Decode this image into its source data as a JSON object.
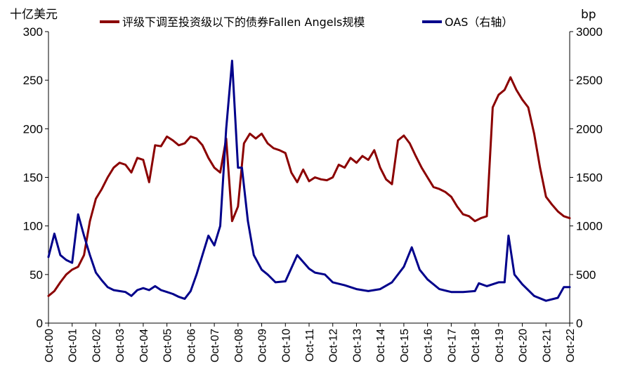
{
  "chart_data": {
    "type": "line",
    "left_unit": "十亿美元",
    "right_unit": "bp",
    "y_left": {
      "min": 0,
      "max": 300,
      "ticks": [
        0,
        50,
        100,
        150,
        200,
        250,
        300
      ]
    },
    "y_right": {
      "min": 0,
      "max": 3000,
      "ticks": [
        0,
        500,
        1000,
        1500,
        2000,
        2500,
        3000
      ]
    },
    "x_ticks": [
      "Oct-00",
      "Oct-01",
      "Oct-02",
      "Oct-03",
      "Oct-04",
      "Oct-05",
      "Oct-06",
      "Oct-07",
      "Oct-08",
      "Oct-09",
      "Oct-10",
      "Oct-11",
      "Oct-12",
      "Oct-13",
      "Oct-14",
      "Oct-15",
      "Oct-16",
      "Oct-17",
      "Oct-18",
      "Oct-19",
      "Oct-20",
      "Oct-21",
      "Oct-22"
    ],
    "legend_position": "top",
    "grid": false,
    "series": [
      {
        "name": "评级下调至投资级以下的债券Fallen Angels规模",
        "axis": "left",
        "color": "#8B0000",
        "x": [
          "2000-10",
          "2001-01",
          "2001-04",
          "2001-07",
          "2001-10",
          "2002-01",
          "2002-04",
          "2002-07",
          "2002-10",
          "2003-01",
          "2003-04",
          "2003-07",
          "2003-10",
          "2004-01",
          "2004-04",
          "2004-07",
          "2004-10",
          "2005-01",
          "2005-04",
          "2005-07",
          "2005-10",
          "2006-01",
          "2006-04",
          "2006-07",
          "2006-10",
          "2007-01",
          "2007-04",
          "2007-07",
          "2007-10",
          "2008-01",
          "2008-04",
          "2008-07",
          "2008-10",
          "2009-01",
          "2009-04",
          "2009-07",
          "2009-10",
          "2010-01",
          "2010-04",
          "2010-07",
          "2010-10",
          "2011-01",
          "2011-04",
          "2011-07",
          "2011-10",
          "2012-01",
          "2012-04",
          "2012-07",
          "2012-10",
          "2013-01",
          "2013-04",
          "2013-07",
          "2013-10",
          "2014-01",
          "2014-04",
          "2014-07",
          "2014-10",
          "2015-01",
          "2015-04",
          "2015-07",
          "2015-10",
          "2016-01",
          "2016-04",
          "2016-07",
          "2016-10",
          "2017-01",
          "2017-04",
          "2017-07",
          "2017-10",
          "2018-01",
          "2018-04",
          "2018-07",
          "2018-10",
          "2019-01",
          "2019-04",
          "2019-07",
          "2019-10",
          "2020-01",
          "2020-04",
          "2020-07",
          "2020-10",
          "2021-01",
          "2021-04",
          "2021-07",
          "2021-10",
          "2022-01",
          "2022-04",
          "2022-07",
          "2022-10"
        ],
        "values": [
          28,
          33,
          42,
          50,
          55,
          58,
          70,
          105,
          128,
          138,
          150,
          160,
          165,
          163,
          155,
          170,
          168,
          145,
          183,
          182,
          192,
          188,
          183,
          185,
          192,
          190,
          183,
          170,
          160,
          155,
          190,
          105,
          120,
          185,
          195,
          190,
          195,
          185,
          180,
          178,
          175,
          155,
          145,
          158,
          146,
          150,
          148,
          147,
          150,
          163,
          160,
          170,
          165,
          172,
          168,
          178,
          160,
          148,
          143,
          188,
          193,
          185,
          172,
          160,
          150,
          140,
          138,
          135,
          130,
          120,
          112,
          110,
          105,
          108,
          110,
          222,
          235,
          240,
          253,
          240,
          230,
          222,
          195,
          160,
          130,
          122,
          115,
          110,
          108
        ]
      },
      {
        "name": "OAS（右轴）",
        "axis": "right",
        "color": "#00008B",
        "x": [
          "2000-10",
          "2001-01",
          "2001-04",
          "2001-07",
          "2001-10",
          "2002-01",
          "2002-04",
          "2002-07",
          "2002-10",
          "2003-01",
          "2003-04",
          "2003-07",
          "2003-10",
          "2004-01",
          "2004-04",
          "2004-07",
          "2004-10",
          "2005-01",
          "2005-04",
          "2005-07",
          "2005-10",
          "2006-01",
          "2006-04",
          "2006-07",
          "2006-10",
          "2007-01",
          "2007-04",
          "2007-07",
          "2007-10",
          "2008-01",
          "2008-04",
          "2008-07",
          "2008-10",
          "2008-12",
          "2009-03",
          "2009-06",
          "2009-10",
          "2010-01",
          "2010-05",
          "2010-10",
          "2011-04",
          "2011-10",
          "2012-01",
          "2012-06",
          "2012-10",
          "2013-04",
          "2013-10",
          "2014-04",
          "2014-10",
          "2015-04",
          "2015-10",
          "2016-02",
          "2016-06",
          "2016-10",
          "2017-04",
          "2017-10",
          "2018-04",
          "2018-10",
          "2018-12",
          "2019-04",
          "2019-10",
          "2020-01",
          "2020-03",
          "2020-06",
          "2020-10",
          "2021-04",
          "2021-10",
          "2022-04",
          "2022-07",
          "2022-10"
        ],
        "values": [
          680,
          920,
          700,
          650,
          620,
          1120,
          900,
          700,
          520,
          440,
          370,
          340,
          330,
          320,
          280,
          340,
          360,
          340,
          380,
          340,
          320,
          300,
          270,
          250,
          330,
          500,
          700,
          900,
          800,
          1000,
          2000,
          2700,
          1600,
          1600,
          1050,
          700,
          550,
          500,
          420,
          430,
          700,
          560,
          520,
          500,
          420,
          390,
          350,
          330,
          350,
          420,
          580,
          780,
          550,
          450,
          350,
          320,
          320,
          330,
          410,
          380,
          420,
          420,
          900,
          500,
          400,
          280,
          230,
          260,
          370,
          370
        ]
      }
    ]
  }
}
